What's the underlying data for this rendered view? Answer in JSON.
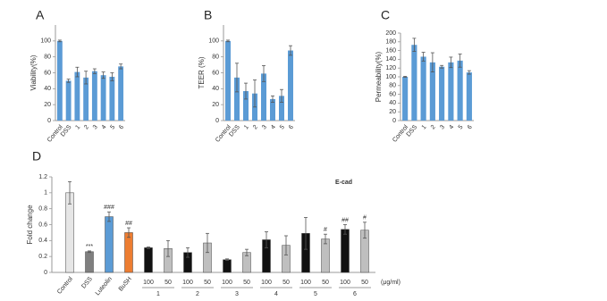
{
  "chart_data": [
    {
      "type": "bar",
      "panel_label": "A",
      "y_label": "Viability(%)",
      "categories": [
        "Control",
        "DSS",
        "1",
        "2",
        "3",
        "4",
        "5",
        "6"
      ],
      "values": [
        100,
        50,
        61,
        54,
        62,
        57,
        55,
        68
      ],
      "errors": [
        1,
        2,
        6,
        8,
        3,
        4,
        5,
        3
      ],
      "color": "#5b9bd5",
      "ylim": [
        0,
        120
      ],
      "yticks": [
        0,
        20,
        40,
        60,
        80,
        100
      ]
    },
    {
      "type": "bar",
      "panel_label": "B",
      "y_label": "TEER (%)",
      "categories": [
        "Control",
        "DSS",
        "1",
        "2",
        "3",
        "4",
        "5",
        "6"
      ],
      "values": [
        100,
        54,
        37,
        34,
        59,
        27,
        31,
        88
      ],
      "errors": [
        1,
        18,
        10,
        17,
        10,
        4,
        8,
        6
      ],
      "color": "#5b9bd5",
      "ylim": [
        0,
        120
      ],
      "yticks": [
        0,
        20,
        40,
        60,
        80,
        100
      ]
    },
    {
      "type": "bar",
      "panel_label": "C",
      "y_label": "Permeability(%)",
      "categories": [
        "Control",
        "DSS",
        "1",
        "2",
        "3",
        "4",
        "5",
        "6"
      ],
      "values": [
        100,
        173,
        146,
        133,
        123,
        133,
        137,
        110
      ],
      "errors": [
        1,
        15,
        10,
        22,
        3,
        12,
        15,
        4
      ],
      "color": "#5b9bd5",
      "ylim": [
        0,
        200
      ],
      "yticks": [
        0,
        20,
        40,
        60,
        80,
        100,
        120,
        140,
        160,
        180,
        200
      ]
    },
    {
      "type": "grouped_bar",
      "panel_label": "D",
      "y_label": "Fold change",
      "series_label": "E-cad",
      "unit_label": "(μg/ml)",
      "categories": [
        "Control",
        "DSS",
        "Luteolin",
        "BuSH",
        "100",
        "50",
        "100",
        "50",
        "100",
        "50",
        "100",
        "50",
        "100",
        "50",
        "100",
        "50"
      ],
      "groups": [
        "1",
        "2",
        "3",
        "4",
        "5",
        "6"
      ],
      "values": [
        1.0,
        0.26,
        0.7,
        0.5,
        0.31,
        0.3,
        0.25,
        0.37,
        0.16,
        0.25,
        0.41,
        0.34,
        0.49,
        0.42,
        0.54,
        0.53
      ],
      "errors": [
        0.14,
        0.01,
        0.06,
        0.06,
        0.01,
        0.1,
        0.06,
        0.12,
        0.01,
        0.04,
        0.1,
        0.12,
        0.2,
        0.06,
        0.06,
        0.1
      ],
      "annotations": [
        null,
        "***",
        "###",
        "##",
        null,
        null,
        null,
        null,
        null,
        null,
        null,
        null,
        null,
        "#",
        "##",
        "#"
      ],
      "colors": [
        "#e6e6e6",
        "#7f7f7f",
        "#5b9bd5",
        "#ed7d31",
        "#111111",
        "#bfbfbf",
        "#111111",
        "#bfbfbf",
        "#111111",
        "#bfbfbf",
        "#111111",
        "#bfbfbf",
        "#111111",
        "#bfbfbf",
        "#111111",
        "#bfbfbf"
      ],
      "ylim": [
        0,
        1.2
      ],
      "yticks": [
        0,
        0.2,
        0.4,
        0.6,
        0.8,
        1,
        1.2
      ]
    }
  ]
}
